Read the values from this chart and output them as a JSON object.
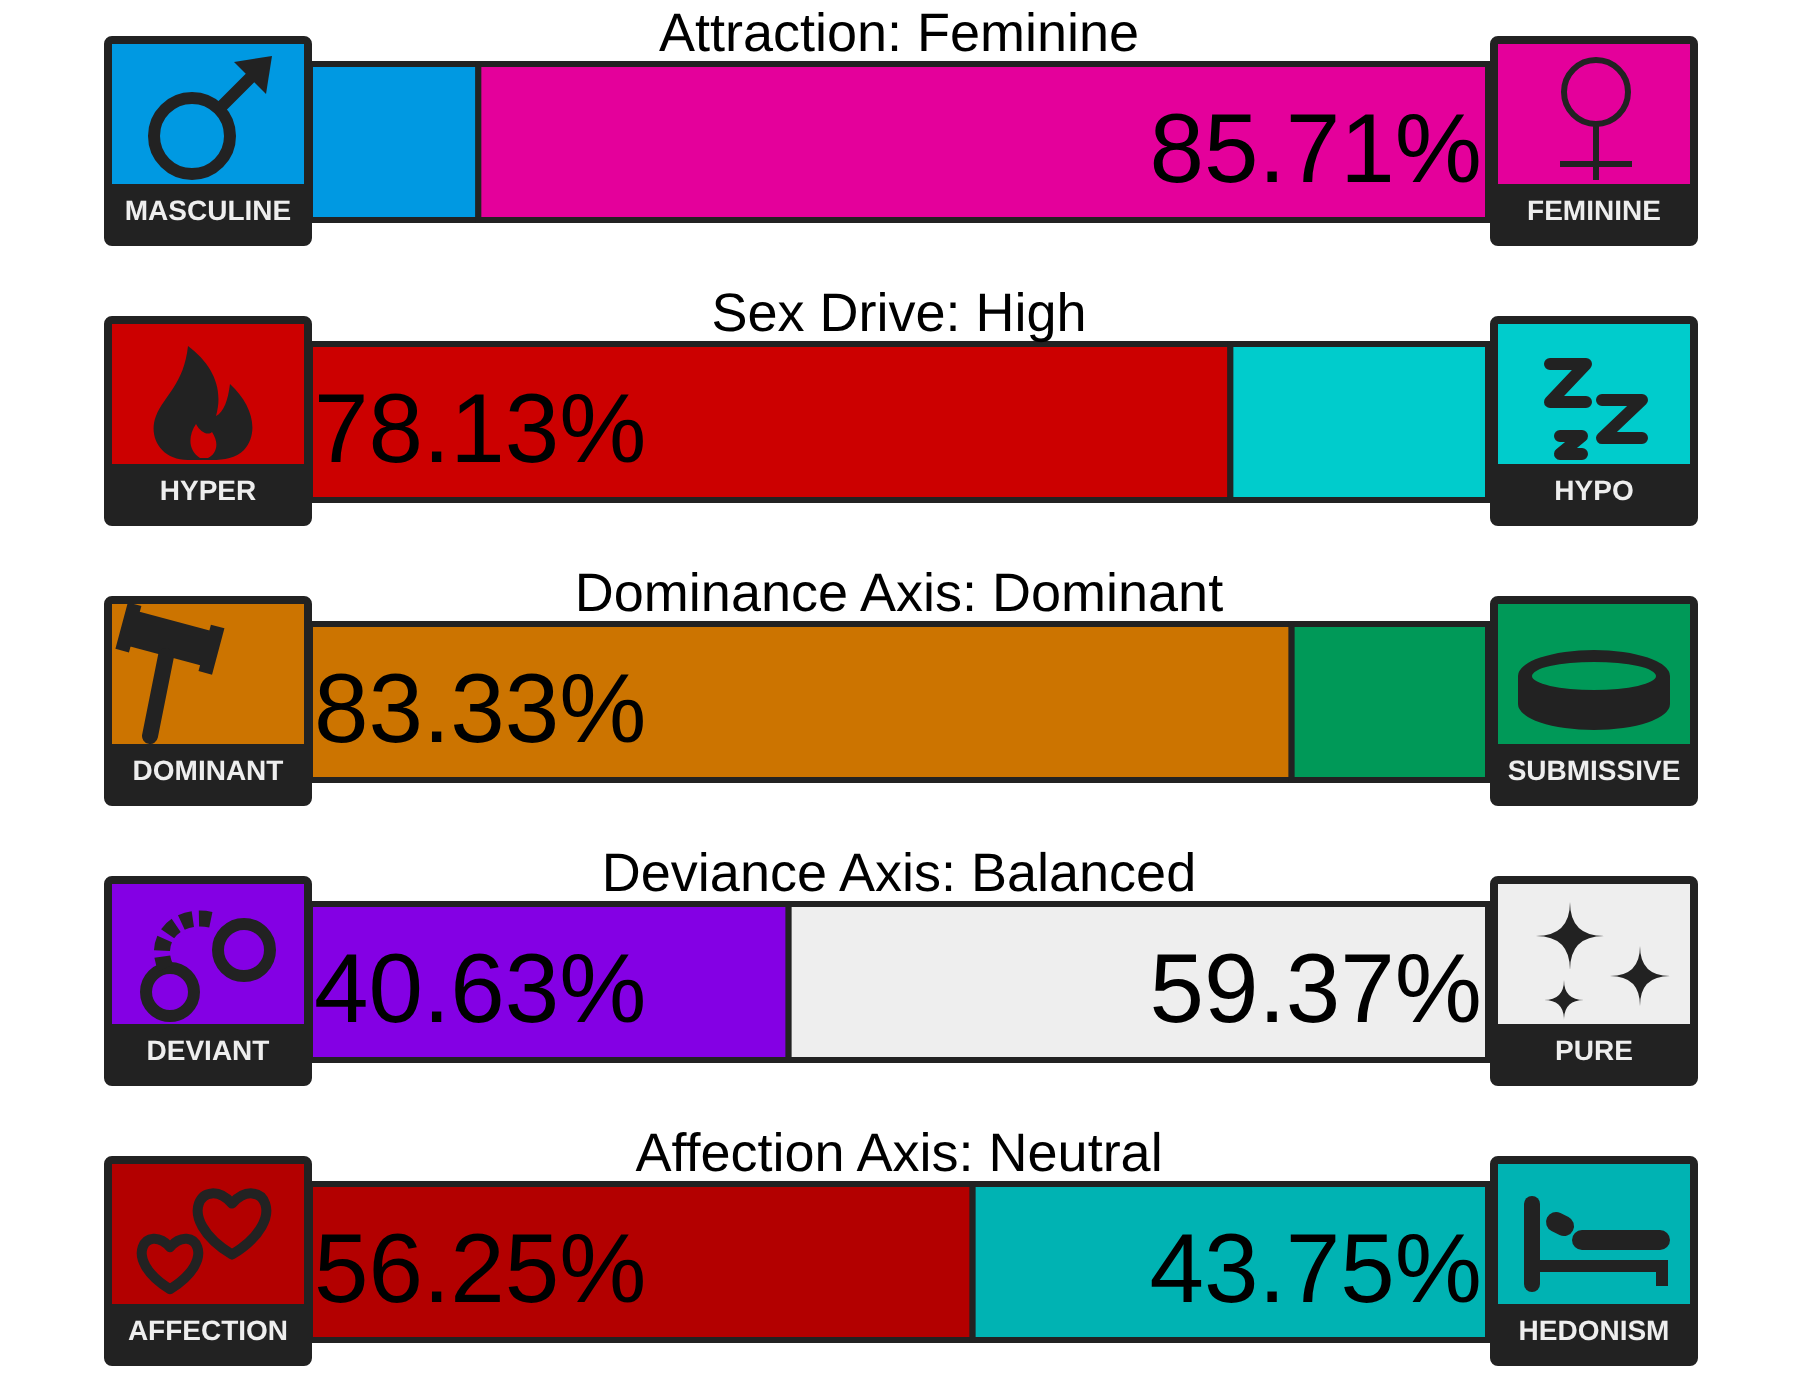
{
  "chart_data": [
    {
      "type": "bar",
      "title": "Attraction: Feminine",
      "orientation": "horizontal",
      "stacked": true,
      "categories": [
        null
      ],
      "xlim": [
        0,
        100
      ],
      "series": [
        {
          "name": "MASCULINE",
          "color": "#0099e2",
          "values": [
            14.29
          ],
          "value_labels": [
            null
          ]
        },
        {
          "name": "FEMININE",
          "color": "#e4009b",
          "values": [
            85.71
          ],
          "value_labels": [
            "85.71%"
          ]
        }
      ]
    },
    {
      "type": "bar",
      "title": "Sex Drive: High",
      "orientation": "horizontal",
      "stacked": true,
      "categories": [
        null
      ],
      "xlim": [
        0,
        100
      ],
      "legend": "bottom",
      "series": [
        {
          "name": "HYPER",
          "color": "#cc0000",
          "values": [
            78.13
          ],
          "value_labels": [
            "78.13%"
          ]
        },
        {
          "name": "HYPO",
          "color": "#00cccc",
          "values": [
            21.87
          ],
          "value_labels": [
            null
          ]
        }
      ]
    },
    {
      "type": "bar",
      "title": "Dominance Axis: Dominant",
      "orientation": "horizontal",
      "stacked": true,
      "categories": [
        null
      ],
      "xlim": [
        0,
        100
      ],
      "series": [
        {
          "name": "DOMINANT",
          "color": "#cc7400",
          "values": [
            83.33
          ],
          "value_labels": [
            "83.33%"
          ]
        },
        {
          "name": "SUBMISSIVE",
          "color": "#009958",
          "values": [
            16.67
          ],
          "value_labels": [
            null
          ]
        }
      ]
    },
    {
      "type": "bar",
      "title": "Deviance Axis: Balanced",
      "orientation": "horizontal",
      "stacked": true,
      "categories": [
        null
      ],
      "xlim": [
        0,
        100
      ],
      "legend": "bottom",
      "series": [
        {
          "name": "DEVIANT",
          "color": "#8400e4",
          "values": [
            40.63
          ],
          "value_labels": [
            "40.63%"
          ]
        },
        {
          "name": "PURE",
          "color": "#eeeeee",
          "values": [
            59.37
          ],
          "value_labels": [
            "59.37%"
          ]
        }
      ]
    },
    {
      "type": "bar",
      "title": "Affection Axis: Neutral",
      "orientation": "horizontal",
      "stacked": true,
      "categories": [
        null
      ],
      "xlim": [
        0,
        100
      ],
      "legend": "bottom",
      "series": [
        {
          "name": "AFFECTION",
          "color": "#b30000",
          "values": [
            56.25
          ],
          "value_labels": [
            "56.25%"
          ]
        },
        {
          "name": "HEDONISM",
          "color": "#00b3b3",
          "values": [
            43.75
          ],
          "value_labels": [
            "43.75%"
          ]
        }
      ]
    }
  ]
}
